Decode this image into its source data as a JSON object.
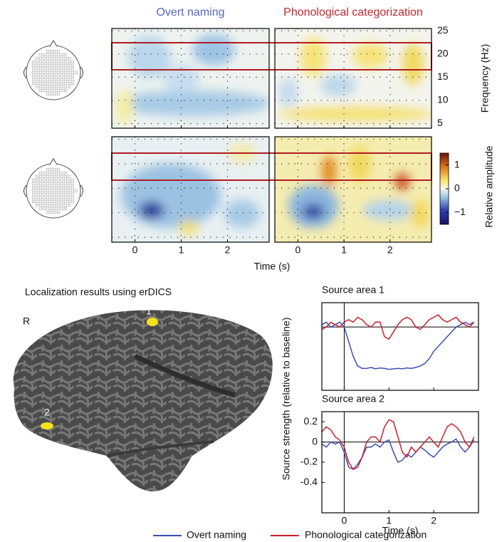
{
  "chart_data": [
    {
      "type": "heatmap",
      "titles": [
        "Overt naming",
        "Phonological categorization"
      ],
      "title_colors": [
        "#5566bb",
        "#c0282e"
      ],
      "xlabel": "Time (s)",
      "ylabel": "Frequency (Hz)",
      "xlim": [
        -0.5,
        2.9
      ],
      "xticks": [
        0,
        1,
        2
      ],
      "ylim": [
        4,
        25.5
      ],
      "yticks": [
        5,
        10,
        15,
        20,
        25
      ],
      "colorbar_label": "Relative amplitude",
      "colorbar_lim": [
        -1.5,
        1.5
      ],
      "colorbar_ticks": [
        {
          "value": -1,
          "label": "−1"
        },
        0,
        1
      ],
      "grid": true
    },
    {
      "type": "line",
      "title": "Source area 1",
      "x": [
        -0.5,
        -0.4,
        -0.3,
        -0.2,
        -0.1,
        0,
        0.1,
        0.2,
        0.3,
        0.4,
        0.5,
        0.6,
        0.7,
        0.8,
        0.9,
        1,
        1.1,
        1.2,
        1.3,
        1.4,
        1.5,
        1.6,
        1.7,
        1.8,
        1.9,
        2,
        2.1,
        2.2,
        2.3,
        2.4,
        2.5,
        2.6,
        2.7,
        2.8,
        2.9
      ],
      "xlim": [
        -0.5,
        3.0
      ],
      "xticks": [
        0,
        1,
        2
      ],
      "ylim": [
        -1.3,
        0.5
      ],
      "series": [
        {
          "name": "Overt naming",
          "color": "#3a4fb0",
          "values": [
            0.05,
            0.1,
            0,
            0.05,
            0.1,
            0,
            -0.3,
            -0.6,
            -0.8,
            -0.85,
            -0.85,
            -0.83,
            -0.86,
            -0.84,
            -0.85,
            -0.87,
            -0.86,
            -0.85,
            -0.86,
            -0.84,
            -0.85,
            -0.83,
            -0.8,
            -0.75,
            -0.65,
            -0.5,
            -0.4,
            -0.3,
            -0.2,
            -0.1,
            0,
            0.05,
            0.1,
            0.05,
            0.1
          ]
        },
        {
          "name": "Phonological categorization",
          "color": "#c8202a",
          "values": [
            -0.05,
            0,
            0.1,
            0.05,
            0,
            0.1,
            0.15,
            0.1,
            0.2,
            0.15,
            0.05,
            0,
            0.1,
            0.1,
            -0.2,
            -0.25,
            -0.1,
            0.05,
            0.15,
            0.2,
            0.15,
            0,
            -0.05,
            0.05,
            0.15,
            0.2,
            0.25,
            0.15,
            0.1,
            0.15,
            0.2,
            0.1,
            0.05,
            0,
            0.1
          ]
        }
      ]
    },
    {
      "type": "line",
      "title": "Source area 2",
      "xlabel": "Time (s)",
      "ylabel": "Source strength (relative to baseline)",
      "x": [
        -0.5,
        -0.4,
        -0.3,
        -0.2,
        -0.1,
        0,
        0.1,
        0.2,
        0.3,
        0.4,
        0.5,
        0.6,
        0.7,
        0.8,
        0.9,
        1,
        1.1,
        1.2,
        1.3,
        1.4,
        1.5,
        1.6,
        1.7,
        1.8,
        1.9,
        2,
        2.1,
        2.2,
        2.3,
        2.4,
        2.5,
        2.6,
        2.7,
        2.8,
        2.9
      ],
      "xlim": [
        -0.5,
        3.0
      ],
      "xticks": [
        0,
        1,
        2
      ],
      "ylim": [
        -0.7,
        0.3
      ],
      "yticks": [
        -0.4,
        -0.2,
        0,
        0.2
      ],
      "series": [
        {
          "name": "Overt naming",
          "color": "#3a4fb0",
          "values": [
            -0.02,
            -0.05,
            0,
            -0.02,
            0,
            -0.1,
            -0.25,
            -0.27,
            -0.22,
            -0.15,
            -0.05,
            -0.05,
            -0.02,
            -0.05,
            0,
            0.02,
            -0.1,
            -0.2,
            -0.18,
            -0.12,
            -0.15,
            -0.1,
            -0.05,
            -0.08,
            -0.12,
            -0.15,
            -0.1,
            -0.05,
            -0.02,
            0,
            0.03,
            -0.05,
            -0.1,
            -0.05,
            0.02
          ]
        },
        {
          "name": "Phonological categorization",
          "color": "#c8202a",
          "values": [
            0.1,
            0.15,
            0.12,
            0.05,
            0.02,
            -0.05,
            -0.2,
            -0.27,
            -0.25,
            -0.15,
            0,
            0.05,
            0.05,
            0,
            0.15,
            0.22,
            0.2,
            0.05,
            -0.1,
            -0.15,
            -0.05,
            -0.1,
            -0.05,
            0,
            0.05,
            0,
            -0.05,
            0.05,
            0.15,
            0.18,
            0.15,
            0.1,
            0,
            -0.05,
            0.05
          ]
        }
      ]
    }
  ],
  "brain_panel": {
    "title": "Localization results using erDICS",
    "hemisphere": "R",
    "labels": [
      "1",
      "2"
    ]
  }
}
